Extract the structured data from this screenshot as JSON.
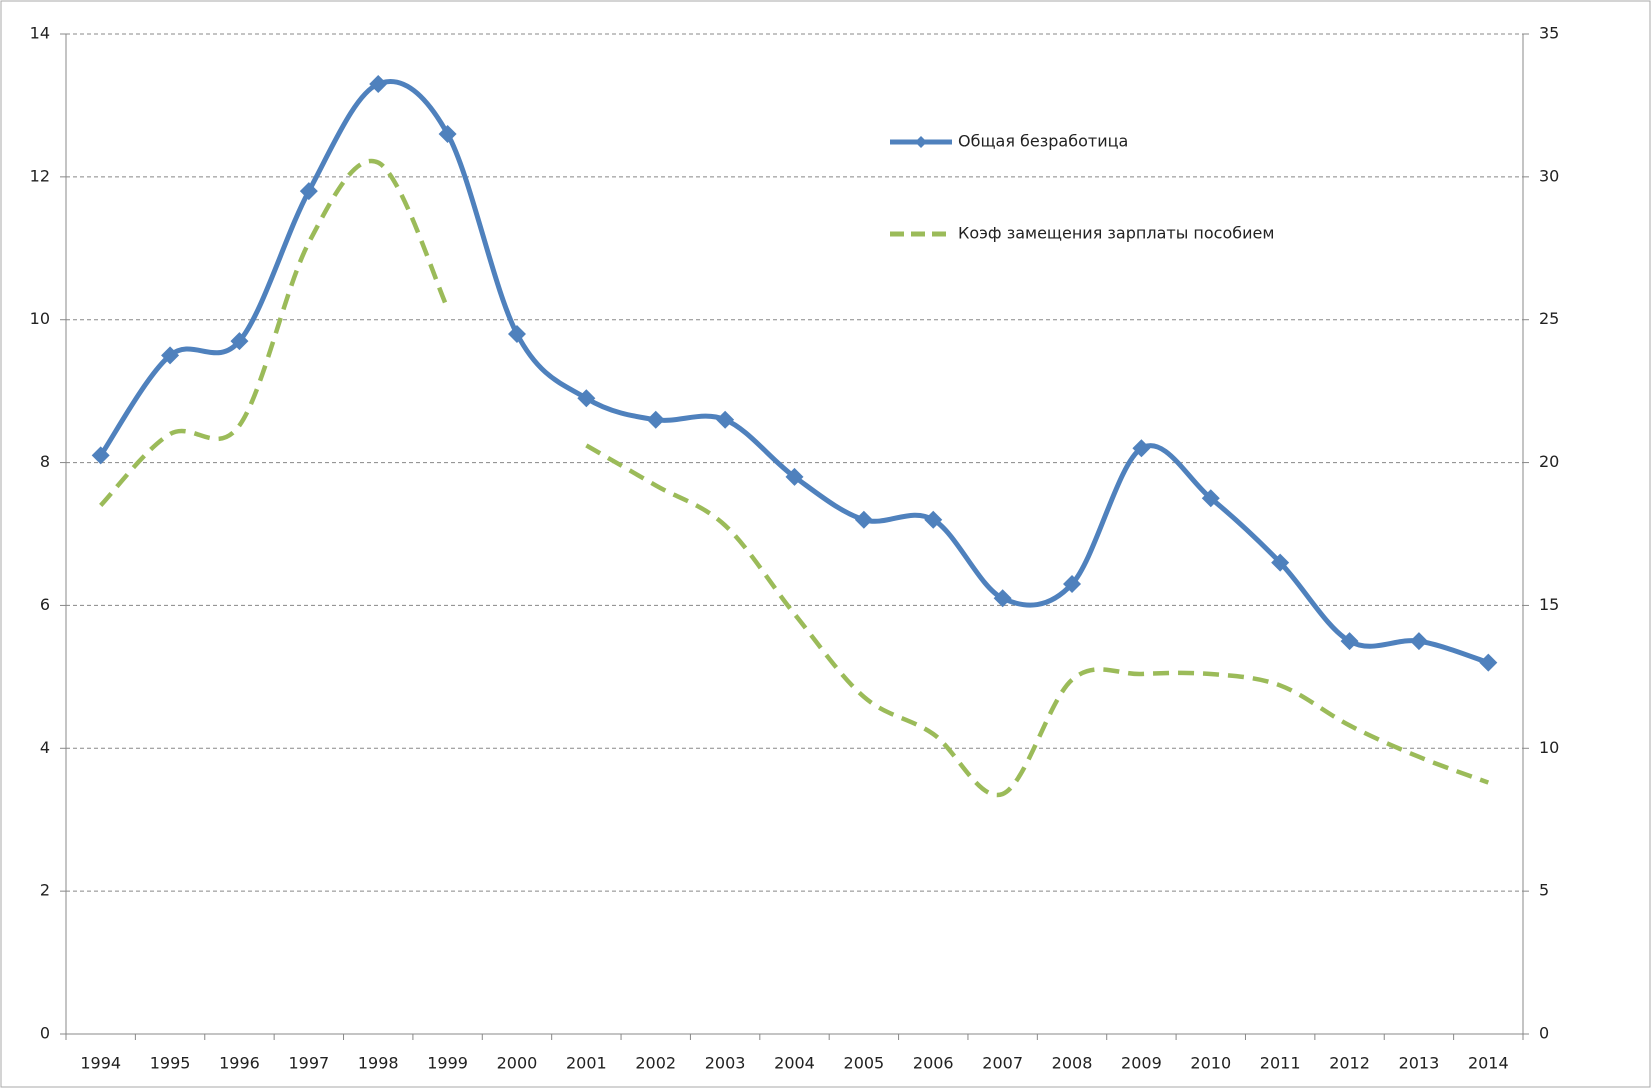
{
  "chart_data": {
    "type": "line",
    "categories": [
      "1994",
      "1995",
      "1996",
      "1997",
      "1998",
      "1999",
      "2000",
      "2001",
      "2002",
      "2003",
      "2004",
      "2005",
      "2006",
      "2007",
      "2008",
      "2009",
      "2010",
      "2011",
      "2012",
      "2013",
      "2014"
    ],
    "series": [
      {
        "name": "Общая безработица",
        "color": "#4f81bd",
        "marker": "diamond",
        "dashed": false,
        "values": [
          8.1,
          9.5,
          9.7,
          11.8,
          13.3,
          12.6,
          9.8,
          8.9,
          8.6,
          8.6,
          7.8,
          7.2,
          7.2,
          6.1,
          6.3,
          8.2,
          7.5,
          6.6,
          5.5,
          5.5,
          5.2
        ]
      },
      {
        "name": "Коэф замещения зарплаты пособием",
        "color": "#9bbb59",
        "marker": null,
        "dashed": true,
        "axis": "y2",
        "values": [
          18.5,
          21.0,
          21.3,
          27.7,
          30.5,
          25.4,
          null,
          20.6,
          19.2,
          17.8,
          14.7,
          11.8,
          10.5,
          8.4,
          12.4,
          12.6,
          12.6,
          12.2,
          10.8,
          9.7,
          8.8
        ]
      }
    ],
    "ylim": [
      0,
      14
    ],
    "yticks": [
      0,
      2,
      4,
      6,
      8,
      10,
      12,
      14
    ],
    "y2lim": [
      0,
      35
    ],
    "y2ticks": [
      0,
      5,
      10,
      15,
      20,
      25,
      30,
      35
    ],
    "grid": true,
    "smooth": true,
    "legend": "top-right"
  }
}
